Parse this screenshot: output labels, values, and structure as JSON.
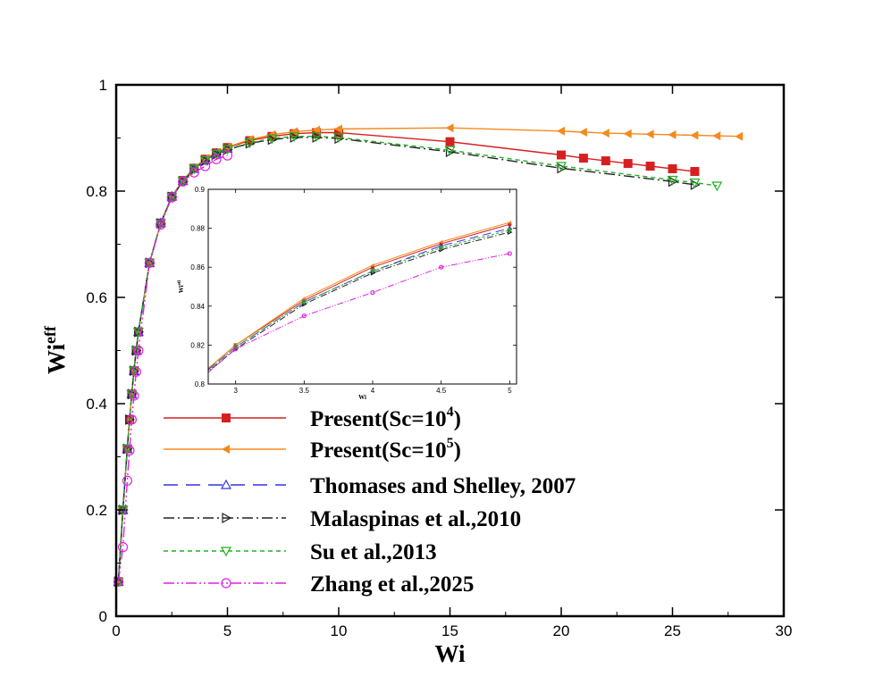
{
  "chart_data": [
    {
      "type": "line",
      "xlabel": "Wi",
      "ylabel_base": "Wi",
      "ylabel_sup": "eff",
      "xlim": [
        0,
        30
      ],
      "ylim": [
        0,
        1
      ],
      "xticks": [
        0,
        5,
        10,
        15,
        20,
        25,
        30
      ],
      "yticks": [
        0,
        0.2,
        0.4,
        0.6,
        0.8,
        1
      ],
      "xtick_labels": [
        "0",
        "5",
        "10",
        "15",
        "20",
        "25",
        "30"
      ],
      "ytick_labels": [
        "0",
        "0.2",
        "0.4",
        "0.6",
        "0.8",
        "1"
      ],
      "legend_position": "lower-center",
      "series": [
        {
          "name": "Present(Sc=10^4)",
          "label_main": "Present(Sc=10",
          "label_sup": "4",
          "label_end": ")",
          "color": "#d62020",
          "dash": "",
          "marker": "square-filled",
          "x": [
            0.1,
            0.3,
            0.5,
            0.6,
            0.7,
            0.8,
            0.9,
            1,
            1.5,
            2,
            2.5,
            3,
            3.5,
            4,
            4.5,
            5,
            6,
            7,
            8,
            9,
            10,
            15,
            20,
            21,
            22,
            23,
            24,
            25,
            26
          ],
          "y": [
            0.065,
            0.2,
            0.315,
            0.37,
            0.418,
            0.462,
            0.5,
            0.535,
            0.665,
            0.74,
            0.79,
            0.82,
            0.843,
            0.86,
            0.872,
            0.882,
            0.895,
            0.903,
            0.908,
            0.91,
            0.91,
            0.893,
            0.868,
            0.862,
            0.857,
            0.852,
            0.847,
            0.842,
            0.837
          ]
        },
        {
          "name": "Present(Sc=10^5)",
          "label_main": "Present(Sc=10",
          "label_sup": "5",
          "label_end": ")",
          "color": "#f5891f",
          "dash": "",
          "marker": "triangle-left-filled",
          "x": [
            0.1,
            0.3,
            0.5,
            0.6,
            0.7,
            0.8,
            0.9,
            1,
            1.5,
            2,
            2.5,
            3,
            3.5,
            4,
            4.5,
            5,
            6,
            7,
            8,
            9,
            10,
            15,
            20,
            21,
            22,
            23,
            24,
            25,
            26,
            27,
            28
          ],
          "y": [
            0.065,
            0.2,
            0.315,
            0.37,
            0.418,
            0.462,
            0.5,
            0.535,
            0.665,
            0.74,
            0.79,
            0.82,
            0.844,
            0.861,
            0.873,
            0.883,
            0.897,
            0.906,
            0.912,
            0.915,
            0.917,
            0.919,
            0.913,
            0.911,
            0.909,
            0.908,
            0.907,
            0.906,
            0.905,
            0.904,
            0.903
          ]
        },
        {
          "name": "Thomases and Shelley, 2007",
          "label_main": "Thomases and Shelley, 2007",
          "label_sup": "",
          "label_end": "",
          "color": "#3434e0",
          "dash": "16,9",
          "marker": "triangle-up-open",
          "x": [
            0.1,
            0.3,
            0.5,
            0.7,
            0.8,
            0.9,
            1,
            1.5,
            2,
            2.5,
            3,
            3.5,
            4,
            4.5,
            5
          ],
          "y": [
            0.065,
            0.2,
            0.315,
            0.418,
            0.462,
            0.5,
            0.535,
            0.665,
            0.74,
            0.79,
            0.819,
            0.842,
            0.858,
            0.871,
            0.88
          ]
        },
        {
          "name": "Malaspinas et al.,2010",
          "label_main": "Malaspinas et al.,2010",
          "label_sup": "",
          "label_end": "",
          "color": "#222222",
          "dash": "12,4,2,4",
          "marker": "triangle-right-open",
          "x": [
            0.1,
            0.3,
            0.5,
            0.6,
            0.7,
            0.8,
            0.9,
            1,
            1.5,
            2,
            2.5,
            3,
            3.5,
            4,
            4.5,
            5,
            6,
            7,
            8,
            9,
            10,
            15,
            20,
            25,
            26
          ],
          "y": [
            0.065,
            0.2,
            0.315,
            0.37,
            0.418,
            0.462,
            0.5,
            0.535,
            0.665,
            0.739,
            0.789,
            0.818,
            0.841,
            0.857,
            0.869,
            0.878,
            0.89,
            0.897,
            0.901,
            0.901,
            0.899,
            0.874,
            0.843,
            0.818,
            0.812
          ]
        },
        {
          "name": "Su et al.,2013",
          "label_main": "Su et al.,2013",
          "label_sup": "",
          "label_end": "",
          "color": "#22b022",
          "dash": "5,4",
          "marker": "triangle-down-open",
          "x": [
            0.1,
            0.3,
            0.5,
            0.7,
            0.8,
            0.9,
            1,
            1.5,
            2,
            2.5,
            3,
            3.5,
            4,
            4.5,
            5,
            6,
            7,
            8,
            9,
            10,
            15,
            20,
            25,
            26,
            27
          ],
          "y": [
            0.065,
            0.2,
            0.315,
            0.418,
            0.462,
            0.5,
            0.535,
            0.665,
            0.739,
            0.789,
            0.819,
            0.842,
            0.858,
            0.87,
            0.879,
            0.891,
            0.899,
            0.903,
            0.903,
            0.901,
            0.877,
            0.847,
            0.821,
            0.816,
            0.81
          ]
        },
        {
          "name": "Zhang et al.,2025",
          "label_main": "Zhang et al.,2025",
          "label_sup": "",
          "label_end": "",
          "color": "#e020e0",
          "dash": "12,3,2,3,2,3",
          "marker": "circle-open",
          "x": [
            0.1,
            0.3,
            0.5,
            0.6,
            0.7,
            0.8,
            0.9,
            1,
            1.5,
            2,
            2.5,
            3,
            3.5,
            4,
            4.5,
            5
          ],
          "y": [
            0.065,
            0.13,
            0.255,
            0.312,
            0.37,
            0.415,
            0.46,
            0.5,
            0.665,
            0.737,
            0.788,
            0.818,
            0.835,
            0.847,
            0.86,
            0.867
          ]
        }
      ]
    },
    {
      "type": "line",
      "role": "inset",
      "xlabel": "Wi",
      "ylabel_base": "Wi",
      "ylabel_sup": "eff",
      "xlim": [
        2.8,
        5.05
      ],
      "ylim": [
        0.8,
        0.9
      ],
      "xticks": [
        3,
        3.5,
        4,
        4.5,
        5
      ],
      "yticks": [
        0.8,
        0.82,
        0.84,
        0.86,
        0.88,
        0.9
      ],
      "xtick_labels": [
        "3",
        "3.5",
        "4",
        "4.5",
        "5"
      ],
      "ytick_labels": [
        "0.8",
        "0.82",
        "0.84",
        "0.86",
        "0.88",
        "0.9"
      ]
    }
  ]
}
